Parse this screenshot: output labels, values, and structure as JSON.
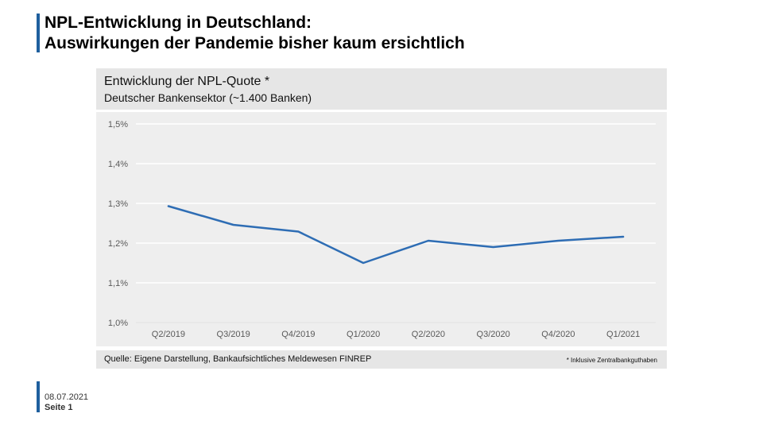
{
  "slide": {
    "title_line1": "NPL-Entwicklung in Deutschland:",
    "title_line2": "Auswirkungen der Pandemie bisher kaum ersichtlich",
    "accent_color": "#1f5f9e",
    "footer_date": "08.07.2021",
    "footer_page": "Seite 1"
  },
  "chart_header": {
    "title": "Entwicklung der NPL-Quote *",
    "subtitle": "Deutscher Bankensektor (~1.400 Banken)"
  },
  "source": {
    "text": "Quelle: Eigene Darstellung, Bankaufsichtliches Meldewesen FINREP",
    "footnote": "* Inklusive Zentralbankguthaben"
  },
  "chart_data": {
    "type": "line",
    "title": "Entwicklung der NPL-Quote *",
    "subtitle": "Deutscher Bankensektor (~1.400 Banken)",
    "categories": [
      "Q2/2019",
      "Q3/2019",
      "Q4/2019",
      "Q1/2020",
      "Q2/2020",
      "Q3/2020",
      "Q4/2020",
      "Q1/2021"
    ],
    "series": [
      {
        "values": [
          1.293,
          1.246,
          1.229,
          1.15,
          1.206,
          1.19,
          1.206,
          1.216
        ],
        "color": "#2e6db4"
      }
    ],
    "ylim": [
      1.0,
      1.5
    ],
    "yticks": [
      1.0,
      1.1,
      1.2,
      1.3,
      1.4,
      1.5
    ],
    "ytick_labels": [
      "1,0%",
      "1,1%",
      "1,2%",
      "1,3%",
      "1,4%",
      "1,5%"
    ],
    "grid": true,
    "legend": "none"
  }
}
